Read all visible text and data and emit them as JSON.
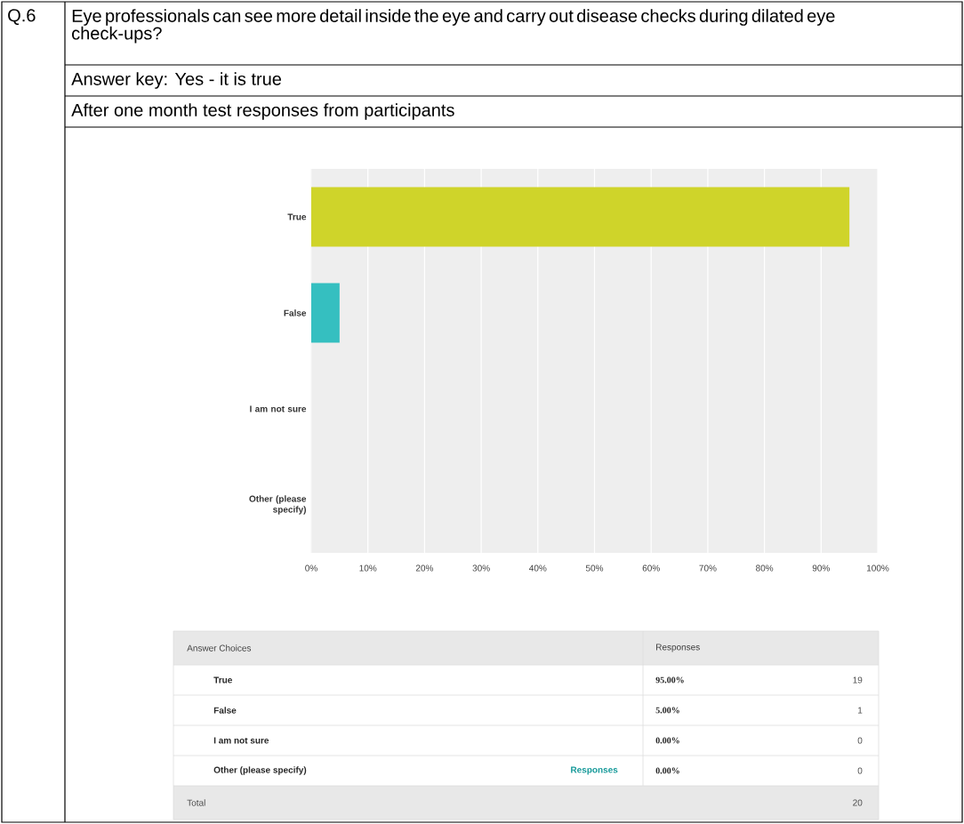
{
  "chart_data": {
    "type": "bar",
    "orientation": "horizontal",
    "title": "Eye professionals can see more detail inside the eye and carry out disease checks during dilated eye check-ups?",
    "subtitle": "Answer key: Yes - it is true",
    "categories": [
      "True",
      "False",
      "I am not sure",
      "Other (please specify)"
    ],
    "values": [
      95,
      5,
      0,
      0
    ],
    "colors": [
      "#cfd42a",
      "#35bfc0",
      "#35bfc0",
      "#35bfc0"
    ],
    "xlim": [
      0,
      100
    ],
    "xticks": [
      {
        "value": 0,
        "label": "0%"
      },
      {
        "value": 10,
        "label": "10%"
      },
      {
        "value": 20,
        "label": "20%"
      },
      {
        "value": 30,
        "label": "30%"
      },
      {
        "value": 40,
        "label": "40%"
      },
      {
        "value": 50,
        "label": "50%"
      },
      {
        "value": 60,
        "label": "60%"
      },
      {
        "value": 70,
        "label": "70%"
      },
      {
        "value": 80,
        "label": "80%"
      },
      {
        "value": 90,
        "label": "90%"
      },
      {
        "value": 100,
        "label": "100%"
      }
    ],
    "grid": "x",
    "annotations": [
      "Q.6",
      "After one month test responses from participants",
      "Answer Choices",
      "Responses",
      "95.00%",
      "19",
      "5.00%",
      "1",
      "0.00%",
      "0",
      "0.00%",
      "0",
      "Responses",
      "Total",
      "20"
    ]
  }
}
